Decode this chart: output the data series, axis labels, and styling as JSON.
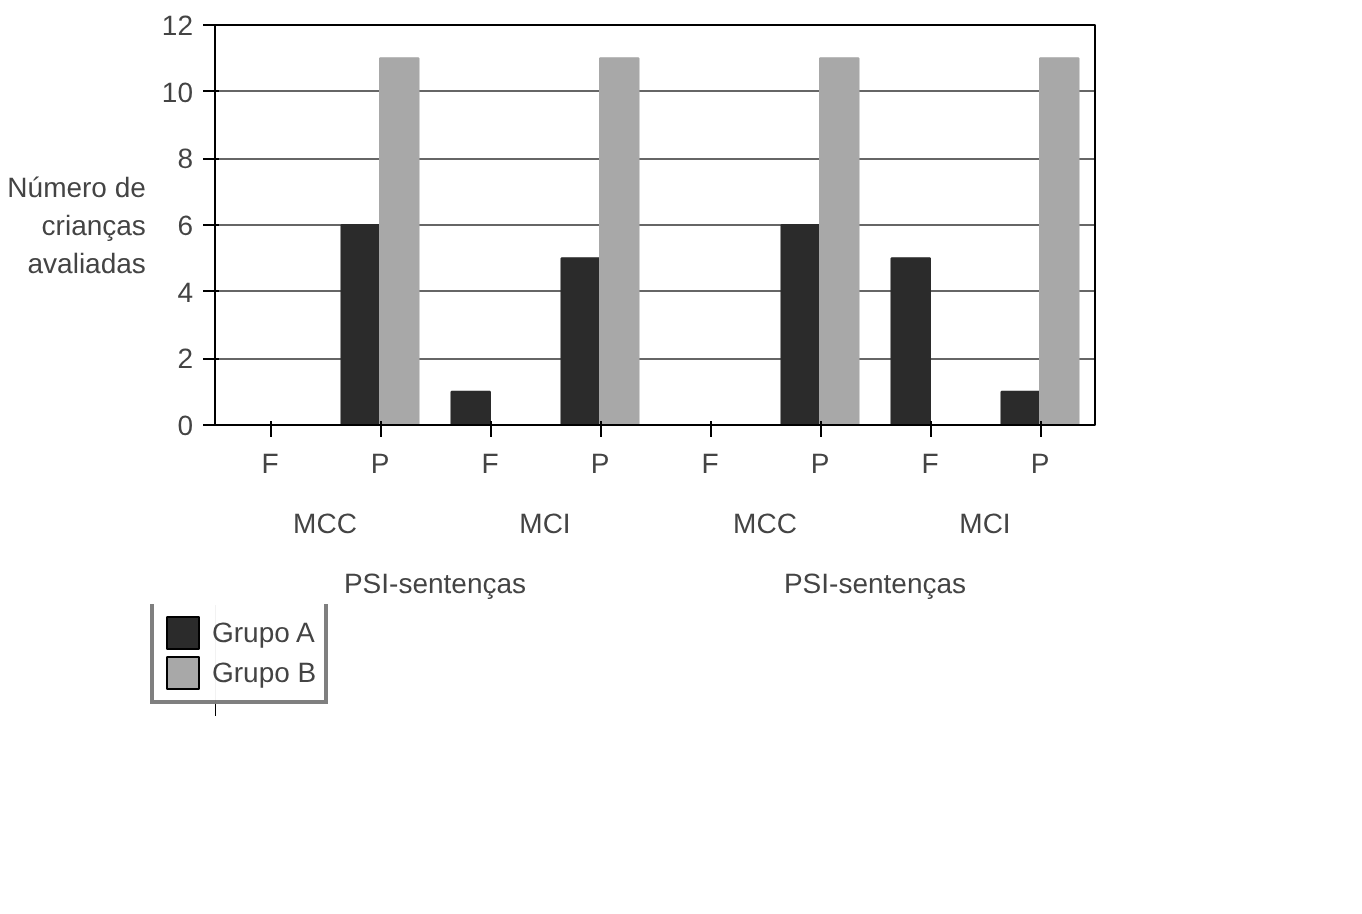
{
  "chart_data": {
    "type": "bar",
    "ylabel": "Número de crianças avaliadas",
    "categories": [
      "F",
      "P",
      "F",
      "P",
      "F",
      "P",
      "F",
      "P"
    ],
    "series": [
      {
        "name": "Grupo A",
        "color": "#2b2b2b",
        "values": [
          0,
          6,
          1,
          5,
          0,
          6,
          5,
          1
        ]
      },
      {
        "name": "Grupo B",
        "color": "#a8a8a8",
        "values": [
          0,
          11,
          0,
          11,
          0,
          11,
          0,
          11
        ]
      }
    ],
    "ylim": [
      0,
      12
    ],
    "yticks": [
      0,
      2,
      4,
      6,
      8,
      10,
      12
    ],
    "grid": "y",
    "legend": "bottom left",
    "annotations": [
      "MCC",
      "MCI",
      "MCC",
      "MCI",
      "PSI-sentenças",
      "PSI-sentenças"
    ]
  }
}
